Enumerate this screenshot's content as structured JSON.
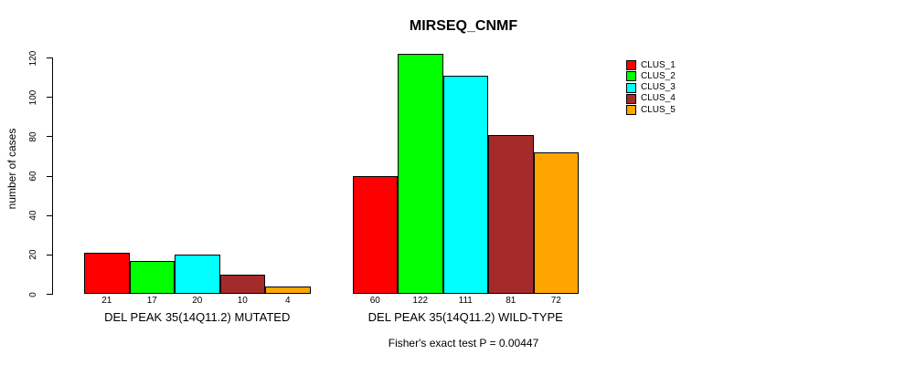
{
  "chart_data": {
    "type": "bar",
    "title": "MIRSEQ_CNMF",
    "xlabel": "",
    "ylabel": "number of cases",
    "ylim": [
      0,
      120
    ],
    "yticks": [
      0,
      20,
      40,
      60,
      80,
      100,
      120
    ],
    "grid": false,
    "legend_position": "right",
    "categories": [
      "DEL PEAK 35(14Q11.2) MUTATED",
      "DEL PEAK 35(14Q11.2) WILD-TYPE"
    ],
    "series": [
      {
        "name": "CLUS_1",
        "color": "#FF0000",
        "values": [
          21,
          60
        ]
      },
      {
        "name": "CLUS_2",
        "color": "#00FF00",
        "values": [
          17,
          122
        ]
      },
      {
        "name": "CLUS_3",
        "color": "#00FFFF",
        "values": [
          20,
          111
        ]
      },
      {
        "name": "CLUS_4",
        "color": "#A52A2A",
        "values": [
          10,
          81
        ]
      },
      {
        "name": "CLUS_5",
        "color": "#FFA500",
        "values": [
          4,
          72
        ]
      }
    ],
    "bar_value_labels": [
      [
        21,
        17,
        20,
        10,
        4
      ],
      [
        60,
        122,
        111,
        81,
        72
      ]
    ],
    "annotation": "Fisher's exact test P = 0.00447"
  }
}
